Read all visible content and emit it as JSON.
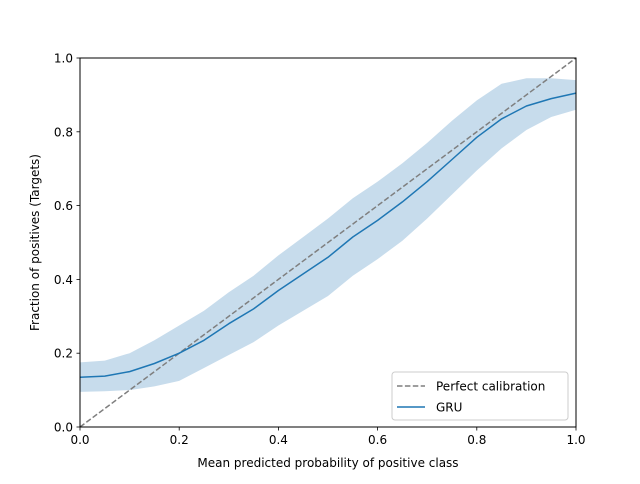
{
  "chart_data": {
    "type": "line",
    "xlabel": "Mean predicted probability of positive class",
    "ylabel": "Fraction of positives (Targets)",
    "xlim": [
      0.0,
      1.0
    ],
    "ylim": [
      0.0,
      1.0
    ],
    "xticks": [
      "0.0",
      "0.2",
      "0.4",
      "0.6",
      "0.8",
      "1.0"
    ],
    "yticks": [
      "0.0",
      "0.2",
      "0.4",
      "0.6",
      "0.8",
      "1.0"
    ],
    "grid": false,
    "legend_position": "lower-right",
    "series": [
      {
        "name": "Perfect calibration",
        "style": "dashed",
        "color": "#7f7f7f",
        "x": [
          0.0,
          1.0
        ],
        "y": [
          0.0,
          1.0
        ]
      },
      {
        "name": "GRU",
        "style": "solid",
        "color": "#1f77b4",
        "band_color": "#c7dcec",
        "x": [
          0.0,
          0.05,
          0.1,
          0.15,
          0.2,
          0.25,
          0.3,
          0.35,
          0.4,
          0.45,
          0.5,
          0.55,
          0.6,
          0.65,
          0.7,
          0.75,
          0.8,
          0.85,
          0.9,
          0.95,
          1.0
        ],
        "y": [
          0.135,
          0.138,
          0.15,
          0.172,
          0.2,
          0.235,
          0.28,
          0.32,
          0.37,
          0.415,
          0.46,
          0.515,
          0.56,
          0.61,
          0.665,
          0.725,
          0.785,
          0.835,
          0.87,
          0.89,
          0.905
        ],
        "y_lower": [
          0.095,
          0.097,
          0.1,
          0.11,
          0.125,
          0.16,
          0.195,
          0.23,
          0.275,
          0.315,
          0.355,
          0.41,
          0.455,
          0.505,
          0.565,
          0.63,
          0.695,
          0.755,
          0.805,
          0.84,
          0.86
        ],
        "y_upper": [
          0.175,
          0.18,
          0.2,
          0.235,
          0.275,
          0.315,
          0.365,
          0.41,
          0.465,
          0.515,
          0.565,
          0.62,
          0.665,
          0.715,
          0.77,
          0.83,
          0.885,
          0.93,
          0.945,
          0.945,
          0.94
        ]
      }
    ]
  }
}
